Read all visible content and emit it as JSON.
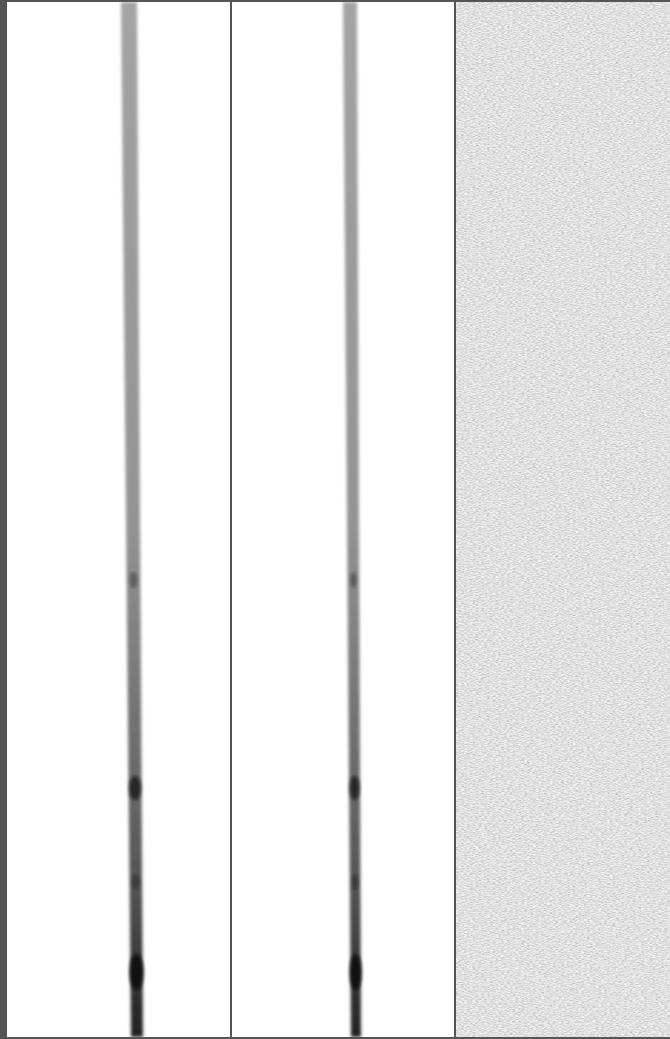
{
  "figure": {
    "panels": [
      {
        "name": "lane-1",
        "content": "vertical-trace"
      },
      {
        "name": "lane-2",
        "content": "vertical-trace"
      },
      {
        "name": "lane-3",
        "content": "noise-field"
      }
    ],
    "colors": {
      "background": "#ffffff",
      "border": "#555555",
      "trace": "#222222"
    }
  }
}
